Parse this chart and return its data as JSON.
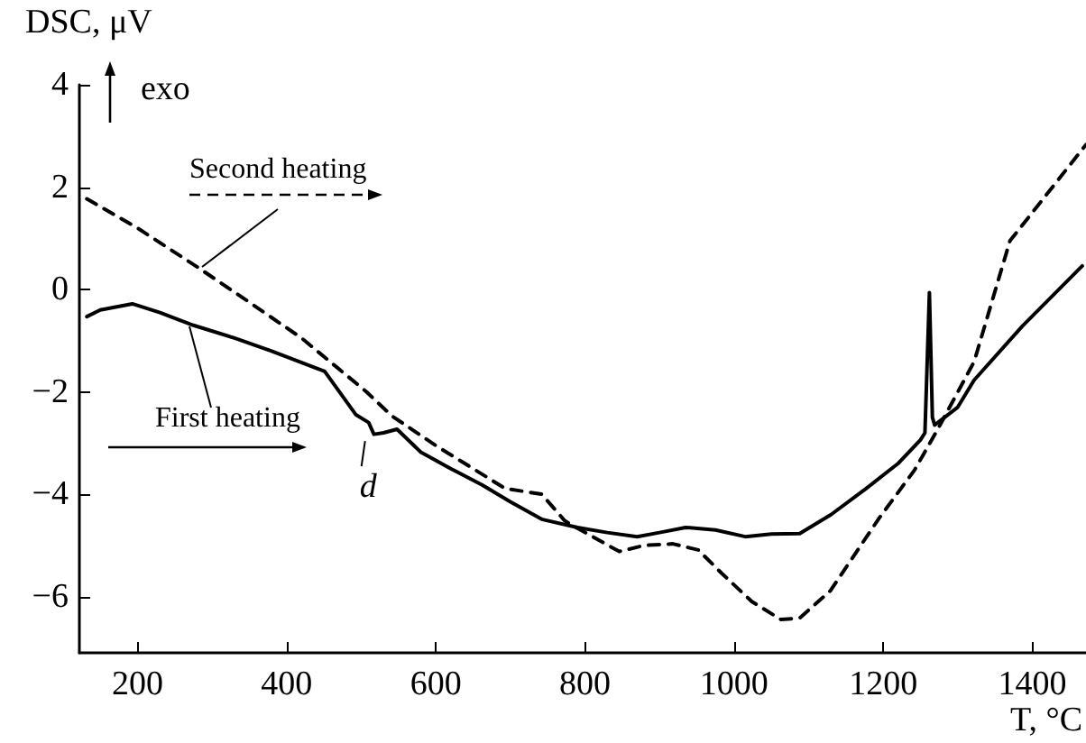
{
  "chart_data": {
    "type": "line",
    "xlabel": "T, °C",
    "ylabel": "DSC, μV",
    "xlim": [
      122,
      1472
    ],
    "xticks": [
      200,
      400,
      600,
      800,
      1000,
      1200,
      1400
    ],
    "ylim": [
      -7.1,
      4
    ],
    "yticks": [
      -6,
      -4,
      -2,
      0,
      2,
      4
    ],
    "grid": false,
    "legend": false,
    "marker": "none",
    "annotations": [
      "exo",
      {
        "text": "d",
        "x": 510,
        "y": -2.75
      }
    ],
    "series": [
      {
        "name": "First heating",
        "color": "#000000",
        "line_style": "solid",
        "x": [
          132,
          150,
          193,
          230,
          275,
          330,
          379,
          451,
          493,
          510,
          517,
          530,
          548,
          580,
          620,
          662,
          700,
          742,
          790,
          830,
          870,
          900,
          935,
          975,
          1015,
          1050,
          1088,
          1130,
          1177,
          1220,
          1250,
          1256,
          1262,
          1266,
          1269,
          1300,
          1322,
          1387,
          1467
        ],
        "values": [
          -0.53,
          -0.4,
          -0.28,
          -0.45,
          -0.7,
          -0.95,
          -1.2,
          -1.6,
          -2.45,
          -2.6,
          -2.83,
          -2.8,
          -2.73,
          -3.18,
          -3.5,
          -3.82,
          -4.15,
          -4.49,
          -4.65,
          -4.75,
          -4.83,
          -4.75,
          -4.65,
          -4.7,
          -4.83,
          -4.78,
          -4.77,
          -4.4,
          -3.89,
          -3.4,
          -2.94,
          -2.8,
          -0.06,
          -2.5,
          -2.65,
          -2.3,
          -1.77,
          -0.71,
          0.46
        ]
      },
      {
        "name": "Second heating",
        "color": "#000000",
        "line_style": "dashed",
        "x": [
          132,
          200,
          282,
          350,
          420,
          507,
          541,
          600,
          650,
          693,
          720,
          742,
          773,
          782,
          846,
          880,
          918,
          952,
          983,
          1024,
          1063,
          1088,
          1129,
          1194,
          1242,
          1274,
          1322,
          1370,
          1472
        ],
        "values": [
          1.77,
          1.2,
          0.42,
          -0.25,
          -0.95,
          -2.0,
          -2.47,
          -3.05,
          -3.5,
          -3.89,
          -3.95,
          -4.0,
          -4.52,
          -4.6,
          -5.12,
          -5.0,
          -4.97,
          -5.09,
          -5.54,
          -6.1,
          -6.45,
          -6.42,
          -5.89,
          -4.48,
          -3.53,
          -2.71,
          -1.41,
          0.95,
          2.83
        ]
      }
    ]
  }
}
